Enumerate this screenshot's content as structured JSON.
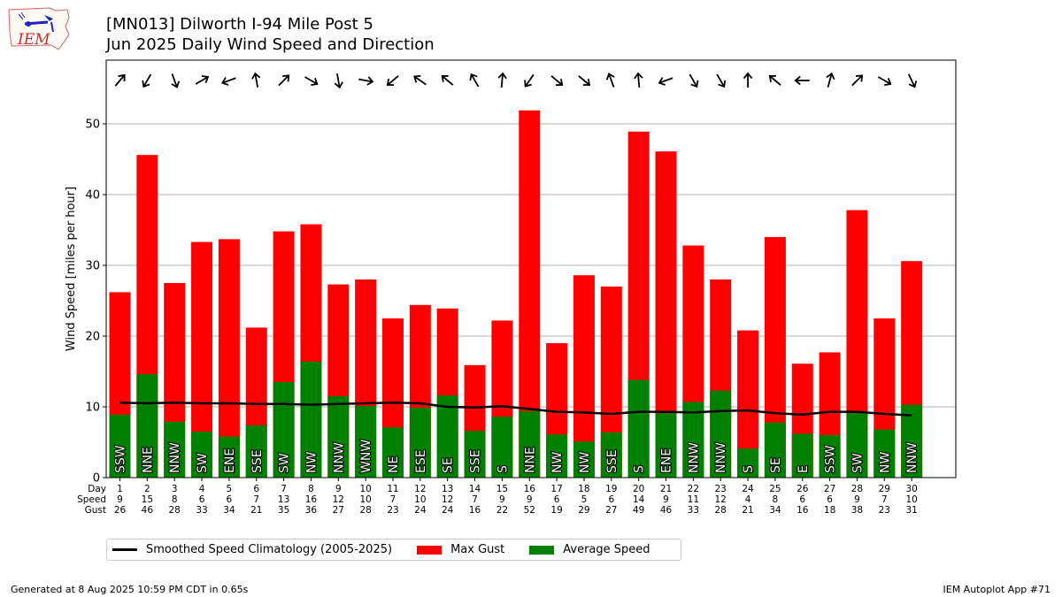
{
  "header": {
    "title_line1": "[MN013] Dilworth I-94 Mile Post 5",
    "title_line2": "Jun 2025 Daily Wind Speed and Direction"
  },
  "logo": {
    "text": "IEM"
  },
  "legend": {
    "climatology_label": "Smoothed Speed Climatology (2005-2025)",
    "gust_label": "Max Gust",
    "avg_label": "Average Speed"
  },
  "footer": {
    "generated": "Generated at 8 Aug 2025 10:59 PM CDT in 0.65s",
    "app": "IEM Autoplot App #71"
  },
  "chart_data": {
    "type": "bar",
    "ylabel": "Wind Speed [miles per hour]",
    "ylim": [
      0,
      59
    ],
    "yticks": [
      0,
      10,
      20,
      30,
      40,
      50
    ],
    "grid": "horizontal",
    "row_labels": [
      "Day",
      "Speed",
      "Gust"
    ],
    "days": [
      1,
      2,
      3,
      4,
      5,
      6,
      7,
      8,
      9,
      10,
      11,
      12,
      13,
      14,
      15,
      16,
      17,
      18,
      19,
      20,
      21,
      22,
      23,
      24,
      25,
      26,
      27,
      28,
      29,
      30
    ],
    "speed_labels": [
      9,
      15,
      8,
      6,
      6,
      7,
      13,
      16,
      12,
      10,
      7,
      10,
      12,
      7,
      9,
      9,
      6,
      5,
      6,
      14,
      9,
      11,
      12,
      4,
      8,
      6,
      6,
      9,
      7,
      10
    ],
    "gust_labels": [
      26,
      46,
      28,
      33,
      34,
      21,
      35,
      36,
      27,
      28,
      23,
      24,
      24,
      16,
      22,
      52,
      19,
      29,
      27,
      49,
      46,
      33,
      28,
      21,
      34,
      16,
      18,
      38,
      23,
      31
    ],
    "series": [
      {
        "name": "Max Gust",
        "color": "#ff0000",
        "values": [
          26.2,
          45.6,
          27.5,
          33.3,
          33.7,
          21.2,
          34.8,
          35.8,
          27.3,
          28.0,
          22.5,
          24.4,
          23.9,
          15.9,
          22.2,
          51.9,
          19.0,
          28.6,
          27.0,
          48.9,
          46.1,
          32.8,
          28.0,
          20.8,
          34.0,
          16.1,
          17.7,
          37.8,
          22.5,
          30.6
        ]
      },
      {
        "name": "Average Speed",
        "color": "#008000",
        "values": [
          8.9,
          14.6,
          7.9,
          6.5,
          5.8,
          7.4,
          13.5,
          16.4,
          11.5,
          10.1,
          7.1,
          9.9,
          11.6,
          6.6,
          8.6,
          9.4,
          6.1,
          5.1,
          6.4,
          13.8,
          9.1,
          10.7,
          12.3,
          4.1,
          7.8,
          6.2,
          6.0,
          9.1,
          6.8,
          10.3
        ]
      }
    ],
    "climatology": {
      "name": "Smoothed Speed Climatology (2005-2025)",
      "color": "#000000",
      "values": [
        10.6,
        10.5,
        10.6,
        10.5,
        10.5,
        10.4,
        10.4,
        10.3,
        10.4,
        10.5,
        10.6,
        10.5,
        10.0,
        9.9,
        10.1,
        9.7,
        9.3,
        9.2,
        9.0,
        9.3,
        9.3,
        9.2,
        9.4,
        9.5,
        9.1,
        8.9,
        9.3,
        9.3,
        9.0,
        8.8
      ]
    },
    "directions": [
      "SSW",
      "NNE",
      "NNW",
      "SW",
      "ENE",
      "SSE",
      "SW",
      "NW",
      "NNW",
      "WNW",
      "NE",
      "ESE",
      "SE",
      "SSE",
      "S",
      "NNE",
      "NW",
      "NW",
      "SSE",
      "S",
      "ENE",
      "NNW",
      "NNW",
      "S",
      "SE",
      "E",
      "SSW",
      "SW",
      "NW",
      "NNW"
    ],
    "arrow_angles": [
      40,
      210,
      160,
      60,
      250,
      350,
      45,
      120,
      170,
      100,
      230,
      305,
      310,
      330,
      5,
      215,
      130,
      130,
      340,
      355,
      250,
      150,
      150,
      0,
      310,
      270,
      15,
      45,
      120,
      155
    ]
  }
}
